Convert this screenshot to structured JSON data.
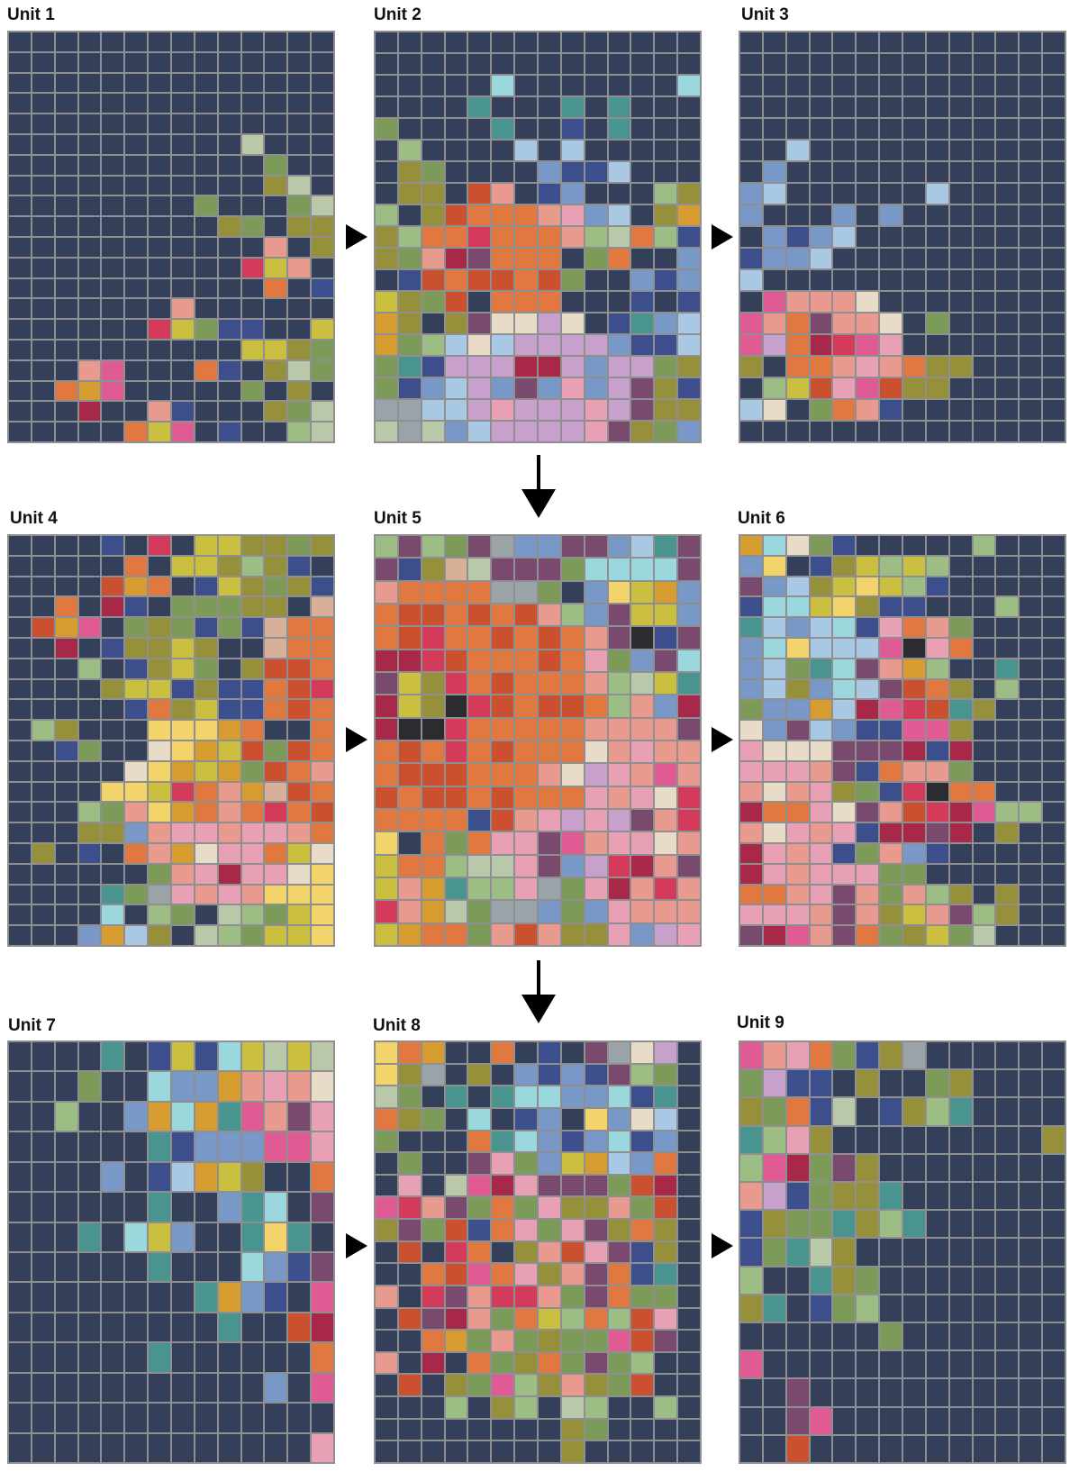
{
  "background_color": "#34405a",
  "line_color": "#8f8f92",
  "palette": {
    "o": "#e07840",
    "O": "#ca5030",
    "r": "#d43a5a",
    "R": "#a8284a",
    "p": "#e05a94",
    "P": "#e8a0b4",
    "s": "#e89a8e",
    "y": "#cbbf40",
    "Y": "#f2d46a",
    "a": "#d69c30",
    "g": "#7c9a58",
    "G": "#9cbe84",
    "l": "#96903a",
    "b": "#7898c8",
    "B": "#a8c8e4",
    "c": "#9ad8de",
    "t": "#4a9490",
    "n": "#3c4e8c",
    "v": "#c8a0cc",
    "m": "#7a4a6e",
    "e": "#e8dcc8",
    "w": "#9aa4a8",
    "k": "#2c2c30",
    "x": "#b8c8a8",
    "h": "#d8b09a"
  },
  "units": [
    {
      "title": "Unit 1",
      "rows": [
        "..............",
        "..............",
        "..............",
        "..............",
        "..............",
        "..........x...",
        "...........g..",
        "...........lx.",
        "........g...gx",
        ".........lg.ll",
        "...........s.l",
        "..........rys.",
        "...........o.n",
        ".......s......",
        "......rygnn..y",
        "..........yylg",
        "...sp...on.lxg",
        "..oap.....g.l.",
        "...R..sn...lgx",
        ".....oyp.n..Gx"
      ]
    },
    {
      "title": "Unit 2",
      "rows": [
        "..............",
        "..............",
        ".....c.......c",
        "....t...t.t...",
        "g....t..n.t...",
        ".G....B.B.....",
        ".lg....bnnB...",
        ".ll.Os.nb...Gl",
        "G.lOooosPbB.la",
        "lGoorooosGxoGn",
        "lgsRmooo.go..b",
        ".nOoOOoOg..bnb",
        "ylgO.ooo...n.n",
        "al.lmeeve.ntbB",
        "agGBeBvvvvbnnB",
        "gtnvvvRRvbvvgl",
        "gnbBvbmbPbvmln",
        "wwBBvPvvvPvmll",
        "xwxbBvvvvPmlgb"
      ]
    },
    {
      "title": "Unit 3",
      "rows": [
        "..............",
        "..............",
        "..............",
        "..............",
        "..............",
        "..B...........",
        ".b............",
        "bB......B.....",
        "b...b.b.......",
        ".bnbB.........",
        "nbbB..........",
        "B.............",
        ".pssse........",
        "psomsse.g.....",
        "pvoRrpP.......",
        "l.oosPsoll....",
        ".GyOPpOll.....",
        "Be.gosn.......",
        ".............."
      ]
    },
    {
      "title": "Unit 4",
      "rows": [
        "....n.r.yyllgl",
        ".....o.yylGln.",
        "....Oao.nylgln",
        "..o.Rn.gggll.h",
        ".Oap.glgngnhoo",
        "..R.nllyl..hoo",
        "...G.nlyg.lOOo",
        "....lyynlnnoOr",
        ".....nolynnoOo",
        ".Gl...YYYao..oo",
        "..ng..eYayOgOo",
        ".....eYayagOos",
        "....YYyrosahOo",
        "...GgsYaosoroO",
        "...llbsPPsPPso",
        ".l.n.osaePPoye",
        "......gsPRPPeY",
        "....tgwPsPsYYY",
        "....c.Gg.xGgyY",
        "...baBl.xGgyyY"
      ]
    },
    {
      "title": "Unit 5",
      "rows": [
        "GmGgmwbbmmbBtm",
        "mnlhxmmmgccccm",
        "soooowwg.bYyab",
        "oOOoOoOsGbmyyb",
        "oOrooOoOosmknm",
        "RRrOoooOoPgbmc",
        "mylroOooosGxyt",
        "RylkrOoOOoGsbR",
        "Rkkrooooossssm",
        "oOoroOoooesPss",
        "oOOOooosevPsps",
        "OoOOoOoooPsPer",
        "oooonOsPvPvmsr",
        "Y.ogoPPmpsPPes",
        "yooGxxPmbvrRsm",
        "ysatGGPwgPRsrs",
        "rsaxgwwbgbPsss",
        "yaoogsOsllPbvP"
      ]
    },
    {
      "title": "Unit 6",
      "rows": [
        "acegn.....G...",
        "bY.nlyGyG.....",
        "mbBlyYyGn.....",
        "nccyYlnn...G..",
        "tBbBcnPosg....",
        "bcYBBBpkPo....",
        "bBgtcmsaG..t..",
        "bBlbcBmOol.G..",
        "gbbaBRprOtl...",
        "ebmBbnnppl....",
        "PeeemmmRnR....",
        "PPPsmnossg....",
        "sesPlgnrkoo...",
        "RooPemsOrRpGG.",
        "sePsPnRRmR.l..",
        "RPsPngsbn.....",
        "RPsPPPgg......",
        "oosPmsgsGl.l..",
        "PPPsmslysmGl..",
        "mRpsmoglygx..."
      ]
    },
    {
      "title": "Unit 7",
      "rows": [
        "....t.nyncyxyx",
        "...g..cbbasPse",
        "..G..bacatpsmP",
        "......tnbbbppP",
        "....b.nBayl..o",
        "......t..btc.m",
        "...t.cyb..tYt.",
        "......t...cbnm",
        "........tabn.p",
        ".........t..OR",
        "......t......o",
        "...........b.p",
        "..............",
        ".............P"
      ]
    },
    {
      "title": "Unit 8",
      "rows": [
        "Yoa..o.n.mwev",
        "Ylw.l.bnbnmGg",
        "xg.t.tccbbcnt",
        "olg.c.nb.YbeB",
        "g...otcbnbcnb",
        ".g..mPgbyaBbo",
        ".P.xpRPmmmgOR",
        "prsmgogPllsgO",
        "lmgOnoPgPmlol",
        ".O.ro.lsOPmnl",
        "..oOpoPlsmont",
        "s.rmsrrsgmogg",
        ".OmRsgoyGoGOP",
        "..oagsglggpOm",
        "s.R.oglogmgG.",
        ".O.lgpGlslgO.",
        "...G.lG.xG..G",
        "........lg....",
        "........l....."
      ]
    },
    {
      "title": "Unit 9",
      "rows": [
        "psPognlw......",
        "gvnn.l..gl....",
        "lgonx.nlGt....",
        "tGPl.........l",
        "GpRgml........",
        "svngllt.......",
        "nlggtlGt......",
        "ngtxl.........",
        "G..tlg........",
        "lt.ngG........",
        "......g.......",
        "p.............",
        "..m...........",
        "..mp..........",
        "..O..........."
      ]
    }
  ]
}
